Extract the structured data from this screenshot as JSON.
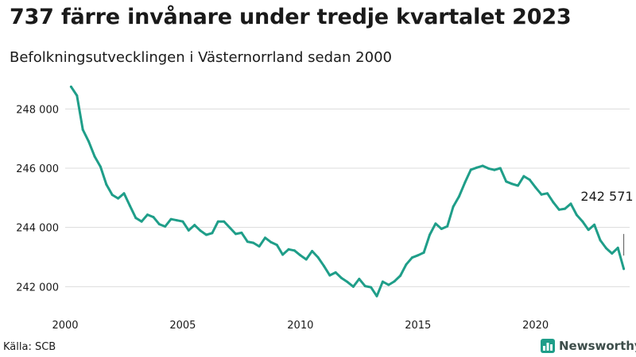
{
  "chart_data": {
    "type": "line",
    "title": "737 färre invånare under tredje kvartalet 2023",
    "subtitle": "Befolkningsutvecklingen i Västernorrland sedan 2000",
    "source": "Källa: SCB",
    "brand": "Newsworthy",
    "xlim": [
      2000,
      2024
    ],
    "ylim": [
      241500,
      249000
    ],
    "x_ticks": [
      2000,
      2005,
      2010,
      2015,
      2020
    ],
    "x_tick_labels": [
      "2000",
      "2005",
      "2010",
      "2015",
      "2020"
    ],
    "y_ticks": [
      242000,
      244000,
      246000,
      248000
    ],
    "y_tick_labels": [
      "242 000",
      "244 000",
      "246 000",
      "248 000"
    ],
    "grid": true,
    "legend": "none",
    "color": "#1f9e89",
    "series": [
      {
        "x": [
          2000.25,
          2000.5,
          2000.75,
          2001.0,
          2001.25,
          2001.5,
          2001.75,
          2002.0,
          2002.25,
          2002.5,
          2002.75,
          2003.0,
          2003.25,
          2003.5,
          2003.75,
          2004.0,
          2004.25,
          2004.5,
          2004.75,
          2005.0,
          2005.25,
          2005.5,
          2005.75,
          2006.0,
          2006.25,
          2006.5,
          2006.75,
          2007.0,
          2007.25,
          2007.5,
          2007.75,
          2008.0,
          2008.25,
          2008.5,
          2008.75,
          2009.0,
          2009.25,
          2009.5,
          2009.75,
          2010.0,
          2010.25,
          2010.5,
          2010.75,
          2011.0,
          2011.25,
          2011.5,
          2011.75,
          2012.0,
          2012.25,
          2012.5,
          2012.75,
          2013.0,
          2013.25,
          2013.5,
          2013.75,
          2014.0,
          2014.25,
          2014.5,
          2014.75,
          2015.0,
          2015.25,
          2015.5,
          2015.75,
          2016.0,
          2016.25,
          2016.5,
          2016.75,
          2017.0,
          2017.25,
          2017.5,
          2017.75,
          2018.0,
          2018.25,
          2018.5,
          2018.75,
          2019.0,
          2019.25,
          2019.5,
          2019.75,
          2020.0,
          2020.25,
          2020.5,
          2020.75,
          2021.0,
          2021.25,
          2021.5,
          2021.75,
          2022.0,
          2022.25,
          2022.5,
          2022.75,
          2023.0,
          2023.25,
          2023.5,
          2023.75
        ],
        "values": [
          248750,
          248450,
          247300,
          246900,
          246400,
          246050,
          245450,
          245100,
          244980,
          245150,
          244730,
          244320,
          244200,
          244430,
          244350,
          244110,
          244030,
          244280,
          244240,
          244200,
          243900,
          244080,
          243890,
          243750,
          243810,
          244200,
          244200,
          243990,
          243780,
          243820,
          243520,
          243480,
          243360,
          243650,
          243500,
          243410,
          243080,
          243260,
          243220,
          243060,
          242920,
          243200,
          242990,
          242700,
          242380,
          242480,
          242290,
          242160,
          242000,
          242260,
          242020,
          241980,
          241680,
          242170,
          242060,
          242180,
          242370,
          242750,
          242980,
          243060,
          243150,
          243750,
          244130,
          243950,
          244040,
          244700,
          245050,
          245520,
          245950,
          246020,
          246080,
          245990,
          245940,
          246000,
          245550,
          245470,
          245410,
          245730,
          245610,
          245350,
          245110,
          245150,
          244850,
          244600,
          244630,
          244800,
          244420,
          244200,
          243920,
          244090,
          243570,
          243300,
          243120,
          243310,
          242600
        ]
      }
    ],
    "annotation": {
      "label": "242 571",
      "x": 2023.75,
      "y_from": 243050,
      "y_to": 243780
    }
  }
}
